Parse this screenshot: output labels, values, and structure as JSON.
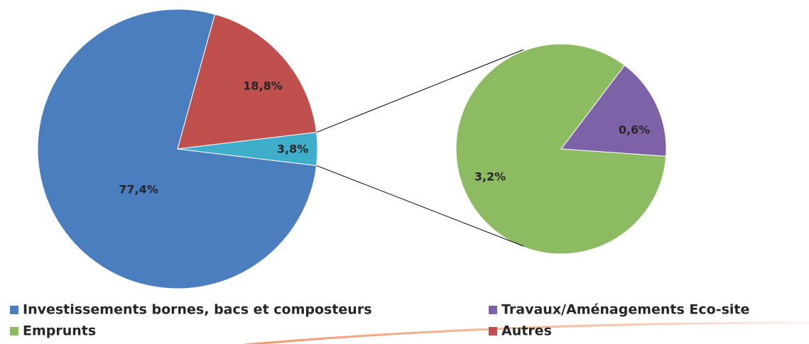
{
  "chart_data": {
    "type": "pie-of-pie",
    "main": {
      "categories": [
        "Investissements bornes, bacs et composteurs",
        "Autres",
        null
      ],
      "values": [
        77.4,
        18.8,
        3.8
      ],
      "value_labels": [
        "77,4%",
        "18,8%",
        "3,8%"
      ],
      "colors": [
        "#4a7ebf",
        "#c0504d",
        "#3eaecb"
      ]
    },
    "secondary": {
      "categories": [
        "Travaux/Aménagements Eco-site",
        "Emprunts"
      ],
      "values": [
        0.6,
        3.2
      ],
      "value_labels": [
        "0,6%",
        "3,2%"
      ],
      "colors": [
        "#7e62a8",
        "#8dbb61"
      ]
    }
  }
}
